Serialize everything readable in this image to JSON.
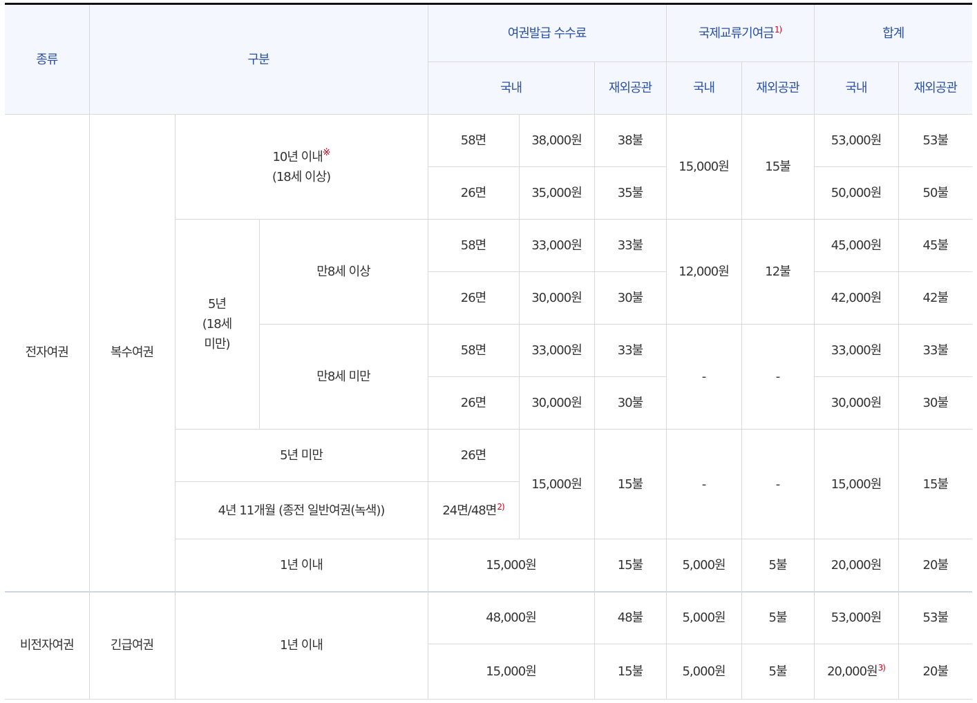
{
  "headers": {
    "type": "종류",
    "category": "구분",
    "issue_fee": "여권발급 수수료",
    "intl_fund": "국제교류기여금",
    "intl_fund_note": "1)",
    "total": "합계",
    "domestic": "국내",
    "overseas": "재외공관"
  },
  "rows": {
    "electronic": "전자여권",
    "multiple": "복수여권",
    "ten_years": "10년 이내",
    "ten_years_mark": "※",
    "ten_years_age": "(18세 이상)",
    "five_years": "5년",
    "five_years_age_a": "(18세",
    "five_years_age_b": "미만)",
    "age8_over": "만8세 이상",
    "age8_under": "만8세 미만",
    "under5": "5년 미만",
    "four11": "4년 11개월 (종전 일반여권(녹색))",
    "one_year": "1년 이내",
    "non_electronic": "비전자여권",
    "emergency": "긴급여권",
    "one_year_emergency": "1년 이내"
  },
  "values": {
    "p58": "58면",
    "p26": "26면",
    "p2448": "24면/48면",
    "p2448_note": "2)",
    "w38000": "38,000원",
    "w35000": "35,000원",
    "w33000": "33,000원",
    "w30000": "30,000원",
    "w15000": "15,000원",
    "w12000": "12,000원",
    "w5000": "5,000원",
    "w48000": "48,000원",
    "w53000": "53,000원",
    "w50000": "50,000원",
    "w45000": "45,000원",
    "w42000": "42,000원",
    "w20000": "20,000원",
    "w20000_note": "3)",
    "d38": "38불",
    "d35": "35불",
    "d33": "33불",
    "d30": "30불",
    "d15": "15불",
    "d12": "12불",
    "d5": "5불",
    "d48": "48불",
    "d53": "53불",
    "d50": "50불",
    "d45": "45불",
    "d42": "42불",
    "d20": "20불",
    "dash": "-"
  }
}
